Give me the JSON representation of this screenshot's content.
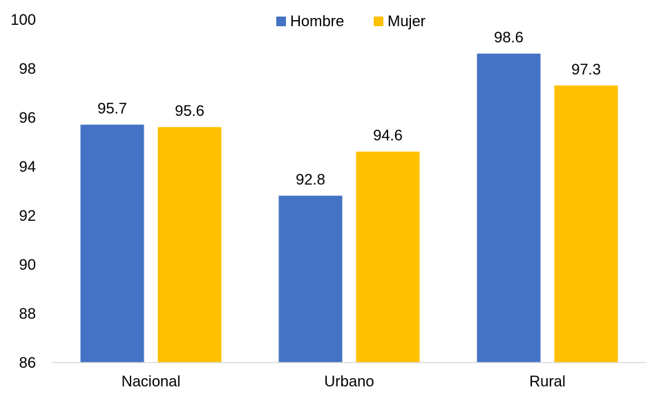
{
  "chart_data": {
    "type": "bar",
    "title": "",
    "xlabel": "",
    "ylabel": "",
    "categories": [
      "Nacional",
      "Urbano",
      "Rural"
    ],
    "series": [
      {
        "name": "Hombre",
        "values": [
          95.7,
          92.8,
          98.6
        ],
        "color": "#4472C4"
      },
      {
        "name": "Mujer",
        "values": [
          95.6,
          94.6,
          97.3
        ],
        "color": "#FFC000"
      }
    ],
    "ylim": [
      86,
      100
    ],
    "yticks": [
      86,
      88,
      90,
      92,
      94,
      96,
      98,
      100
    ],
    "grid": false,
    "legend": "top-center",
    "data_labels": true,
    "axis_color": "#D9D9D9"
  }
}
